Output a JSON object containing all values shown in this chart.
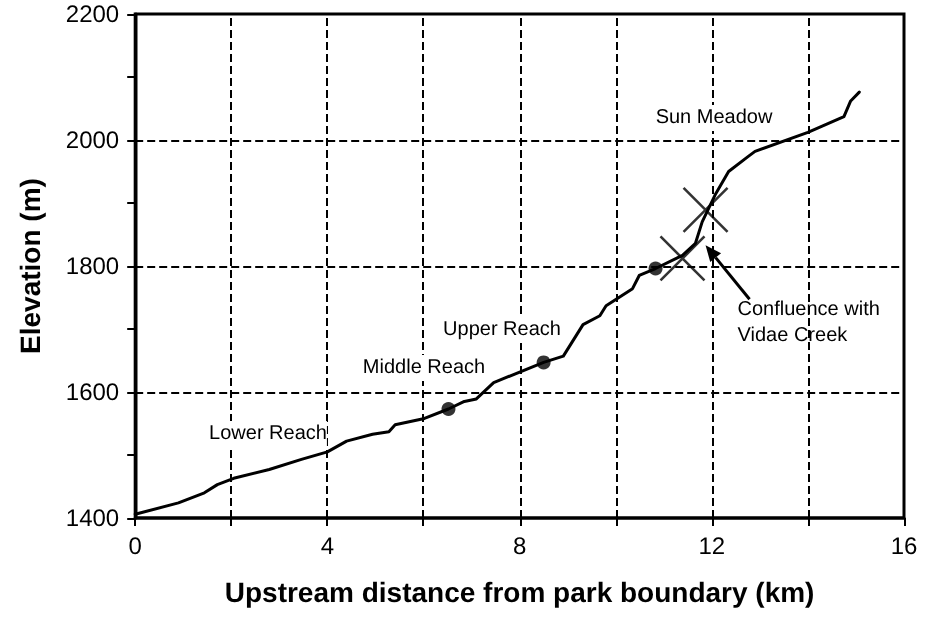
{
  "chart_data": {
    "type": "line",
    "xlabel": "Upstream distance from park boundary (km)",
    "ylabel": "Elevation (m)",
    "xlim": [
      0,
      16
    ],
    "xticks": [
      0,
      {
        "value": 2,
        "label": null
      },
      4,
      {
        "value": 6,
        "label": null
      },
      8,
      {
        "value": 10,
        "label": null
      },
      12,
      {
        "value": 14,
        "label": null
      },
      16
    ],
    "ylim": [
      1400,
      2200
    ],
    "yticks": [
      1400,
      {
        "value": 1500,
        "label": null
      },
      1600,
      {
        "value": 1700,
        "label": null
      },
      1800,
      {
        "value": 1900,
        "label": null
      },
      2000,
      {
        "value": 2100,
        "label": null
      },
      2200
    ],
    "grid": true,
    "series": [
      {
        "color": "#000000",
        "marker": "none",
        "x": [
          0,
          0.9,
          1.44,
          1.71,
          2.05,
          2.79,
          3.46,
          4.0,
          4.4,
          4.94,
          5.28,
          5.41,
          6.02,
          6.52,
          6.85,
          7.1,
          7.46,
          8.5,
          8.91,
          9.32,
          9.67,
          9.8,
          10.35,
          10.49,
          10.83,
          11.39,
          11.66,
          11.8,
          12.07,
          12.35,
          12.76,
          12.9,
          14.0,
          14.75,
          14.89,
          15.07
        ],
        "values": [
          1406,
          1424,
          1440,
          1453,
          1463,
          1477,
          1493,
          1505,
          1522,
          1533,
          1537,
          1548,
          1558,
          1573,
          1585,
          1589,
          1615,
          1647,
          1657,
          1707,
          1721,
          1737,
          1764,
          1785,
          1796,
          1817,
          1836,
          1870,
          1913,
          1950,
          1974,
          1982,
          2012,
          2037,
          2062,
          2076
        ]
      },
      {
        "type": "scatter",
        "color": "#000000",
        "marker": "circle",
        "x": [
          6.52,
          8.5,
          10.83
        ],
        "values": [
          1573,
          1647,
          1796
        ]
      },
      {
        "type": "scatter",
        "color": "#000000",
        "marker": "cross",
        "x": [
          11.39,
          11.87
        ],
        "values": [
          1812,
          1889
        ]
      }
    ],
    "annotations": [
      "Lower Reach",
      "Middle Reach",
      "Upper Reach",
      "Sun Meadow",
      {
        "text": "Confluence with\nVidae Creek",
        "x": 11.87,
        "y": 1833
      }
    ]
  }
}
